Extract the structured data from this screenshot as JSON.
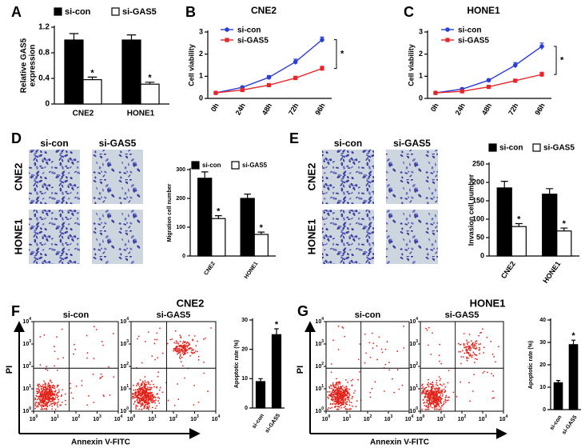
{
  "panel_labels": [
    "A",
    "B",
    "C",
    "D",
    "E",
    "F",
    "G"
  ],
  "chart_data": [
    {
      "type": "bar",
      "categories": [
        "CNE2",
        "HONE1"
      ],
      "ylabel": [
        "Relative GAS5",
        "expression"
      ],
      "ylim": [
        0,
        1.2
      ],
      "yticks": [
        0,
        0.4,
        0.8,
        1.2
      ],
      "series": [
        {
          "name": "si-con",
          "color": "#000000",
          "values": [
            1.0,
            1.0
          ],
          "errors": [
            0.1,
            0.08
          ]
        },
        {
          "name": "si-GAS5",
          "color": "#ffffff",
          "values": [
            0.38,
            0.31
          ],
          "errors": [
            0.04,
            0.03
          ],
          "significance": [
            "*",
            "*"
          ]
        }
      ]
    },
    {
      "type": "line",
      "title": "CNE2",
      "categories": [
        "0h",
        "24h",
        "48h",
        "72h",
        "96h"
      ],
      "ylabel": "Cell viability",
      "ylim": [
        0,
        3
      ],
      "yticks": [
        0,
        1,
        2,
        3
      ],
      "annotation": "*",
      "series": [
        {
          "name": "si-con",
          "color": "#2b3fd6",
          "values": [
            0.25,
            0.5,
            0.95,
            1.65,
            2.65
          ],
          "errors": [
            0.03,
            0.04,
            0.08,
            0.12,
            0.12
          ]
        },
        {
          "name": "si-GAS5",
          "color": "#e8262a",
          "values": [
            0.25,
            0.38,
            0.6,
            0.92,
            1.35
          ],
          "errors": [
            0.03,
            0.03,
            0.05,
            0.08,
            0.1
          ]
        }
      ]
    },
    {
      "type": "line",
      "title": "HONE1",
      "categories": [
        "0h",
        "24h",
        "48h",
        "72h",
        "96h"
      ],
      "ylabel": "Cell viability",
      "ylim": [
        0,
        3
      ],
      "yticks": [
        0,
        1,
        2,
        3
      ],
      "annotation": "*",
      "series": [
        {
          "name": "si-con",
          "color": "#2b3fd6",
          "values": [
            0.25,
            0.42,
            0.82,
            1.5,
            2.35
          ],
          "errors": [
            0.03,
            0.04,
            0.06,
            0.12,
            0.15
          ]
        },
        {
          "name": "si-GAS5",
          "color": "#e8262a",
          "values": [
            0.25,
            0.32,
            0.52,
            0.8,
            1.08
          ],
          "errors": [
            0.03,
            0.03,
            0.04,
            0.06,
            0.1
          ]
        }
      ]
    },
    {
      "type": "bar",
      "categories": [
        "CNE2",
        "HONE1"
      ],
      "ylabel": "Migration cell number",
      "ylim": [
        0,
        300
      ],
      "yticks": [
        0,
        100,
        200,
        300
      ],
      "series": [
        {
          "name": "si-con",
          "color": "#000000",
          "values": [
            270,
            200
          ],
          "errors": [
            22,
            15
          ]
        },
        {
          "name": "si-GAS5",
          "color": "#ffffff",
          "values": [
            130,
            75
          ],
          "errors": [
            10,
            8
          ],
          "significance": [
            "*",
            "*"
          ]
        }
      ]
    },
    {
      "type": "bar",
      "categories": [
        "CNE2",
        "HONE1"
      ],
      "ylabel": "Invasion cell number",
      "ylim": [
        0,
        250
      ],
      "yticks": [
        0,
        50,
        100,
        150,
        200,
        250
      ],
      "series": [
        {
          "name": "si-con",
          "color": "#000000",
          "values": [
            185,
            168
          ],
          "errors": [
            18,
            15
          ]
        },
        {
          "name": "si-GAS5",
          "color": "#ffffff",
          "values": [
            80,
            68
          ],
          "errors": [
            8,
            8
          ],
          "significance": [
            "*",
            "*"
          ]
        }
      ]
    },
    {
      "type": "bar",
      "categories": [
        "si-con",
        "si-GAS5"
      ],
      "ylabel": "Apoptotic rate (%)",
      "ylim": [
        0,
        30
      ],
      "yticks": [
        0,
        10,
        20,
        30
      ],
      "color": "#000000",
      "values": [
        9,
        25
      ],
      "errors": [
        1,
        2
      ],
      "significance": [
        null,
        "*"
      ]
    },
    {
      "type": "bar",
      "categories": [
        "si-con",
        "si-GAS5"
      ],
      "ylabel": "Apoptotic rate (%)",
      "ylim": [
        0,
        40
      ],
      "yticks": [
        0,
        10,
        20,
        30,
        40
      ],
      "color": "#000000",
      "values": [
        12,
        29
      ],
      "errors": [
        1,
        2
      ],
      "significance": [
        null,
        "*"
      ]
    }
  ],
  "micrographs": [
    {
      "columns": [
        "si-con",
        "si-GAS5"
      ],
      "rows": [
        "CNE2",
        "HONE1"
      ]
    },
    {
      "columns": [
        "si-con",
        "si-GAS5"
      ],
      "rows": [
        "CNE2",
        "HONE1"
      ]
    }
  ],
  "flow": [
    {
      "title": "CNE2",
      "plots": [
        "si-con",
        "si-GAS5"
      ],
      "xlabel": "Annexin V-FITC",
      "ylabel": "PI",
      "log_base": 10,
      "log_ticks": [
        0,
        1,
        2,
        3,
        4
      ]
    },
    {
      "title": "HONE1",
      "plots": [
        "si-con",
        "si-GAS5"
      ],
      "xlabel": "Annexin V-FITC",
      "ylabel": "PI",
      "log_base": 10,
      "log_ticks": [
        0,
        1,
        2,
        3,
        4
      ]
    }
  ]
}
